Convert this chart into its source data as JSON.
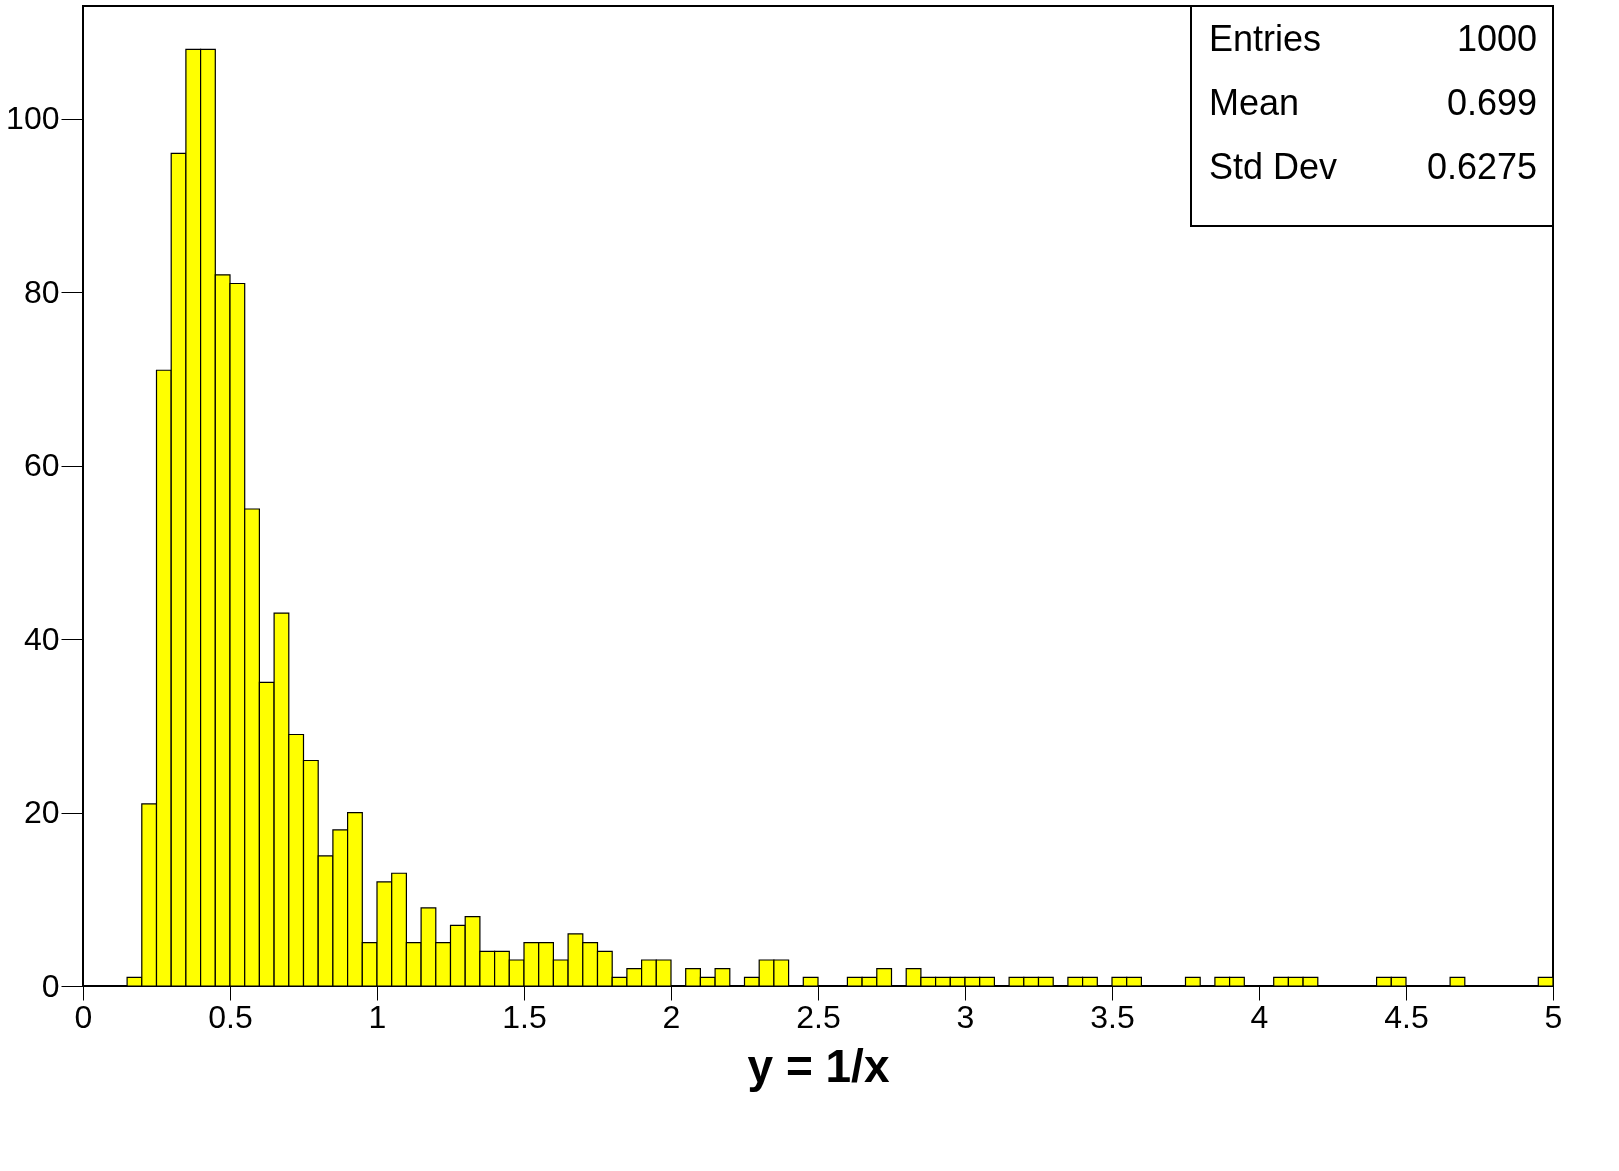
{
  "chart_data": {
    "type": "histogram",
    "xlabel": "y = 1/x",
    "bins": [
      0,
      0.05,
      0.1,
      0.15,
      0.2,
      0.25,
      0.3,
      0.35,
      0.4,
      0.45,
      0.5,
      0.55,
      0.6,
      0.65,
      0.7,
      0.75,
      0.8,
      0.85,
      0.9,
      0.95,
      1,
      1.05,
      1.1,
      1.15,
      1.2,
      1.25,
      1.3,
      1.35,
      1.4,
      1.45,
      1.5,
      1.55,
      1.6,
      1.65,
      1.7,
      1.75,
      1.8,
      1.85,
      1.9,
      1.95,
      2,
      2.05,
      2.1,
      2.15,
      2.2,
      2.25,
      2.3,
      2.35,
      2.4,
      2.45,
      2.5,
      2.55,
      2.6,
      2.65,
      2.7,
      2.75,
      2.8,
      2.85,
      2.9,
      2.95,
      3,
      3.05,
      3.1,
      3.15,
      3.2,
      3.25,
      3.3,
      3.35,
      3.4,
      3.45,
      3.5,
      3.55,
      3.6,
      3.65,
      3.7,
      3.75,
      3.8,
      3.85,
      3.9,
      3.95,
      4,
      4.05,
      4.1,
      4.15,
      4.2,
      4.25,
      4.3,
      4.35,
      4.4,
      4.45,
      4.5,
      4.55,
      4.6,
      4.65,
      4.7,
      4.75,
      4.8,
      4.85,
      4.9,
      4.95,
      5
    ],
    "values": [
      0,
      0,
      0,
      1,
      21,
      71,
      96,
      108,
      108,
      82,
      81,
      55,
      35,
      43,
      29,
      26,
      15,
      18,
      20,
      5,
      12,
      13,
      5,
      9,
      5,
      7,
      8,
      4,
      4,
      3,
      5,
      5,
      3,
      6,
      5,
      4,
      1,
      2,
      3,
      3,
      0,
      2,
      1,
      2,
      0,
      1,
      3,
      3,
      0,
      1,
      0,
      0,
      1,
      1,
      2,
      0,
      2,
      1,
      1,
      1,
      1,
      1,
      0,
      1,
      1,
      1,
      0,
      1,
      1,
      0,
      1,
      1,
      0,
      0,
      0,
      1,
      0,
      1,
      1,
      0,
      0,
      1,
      1,
      1,
      0,
      0,
      0,
      0,
      1,
      1,
      0,
      0,
      0,
      1,
      0,
      0,
      0,
      0,
      0,
      1
    ],
    "color": "#ffff00",
    "xlim": [
      0,
      5
    ],
    "xticks": [
      0,
      0.5,
      1,
      1.5,
      2,
      2.5,
      3,
      3.5,
      4,
      4.5,
      5
    ],
    "ylim": [
      0,
      113
    ],
    "yticks": [
      0,
      20,
      40,
      60,
      80,
      100
    ],
    "grid": false,
    "annotations": [
      "Entries 1000",
      "Mean 0.699",
      "Std Dev 0.6275"
    ]
  }
}
